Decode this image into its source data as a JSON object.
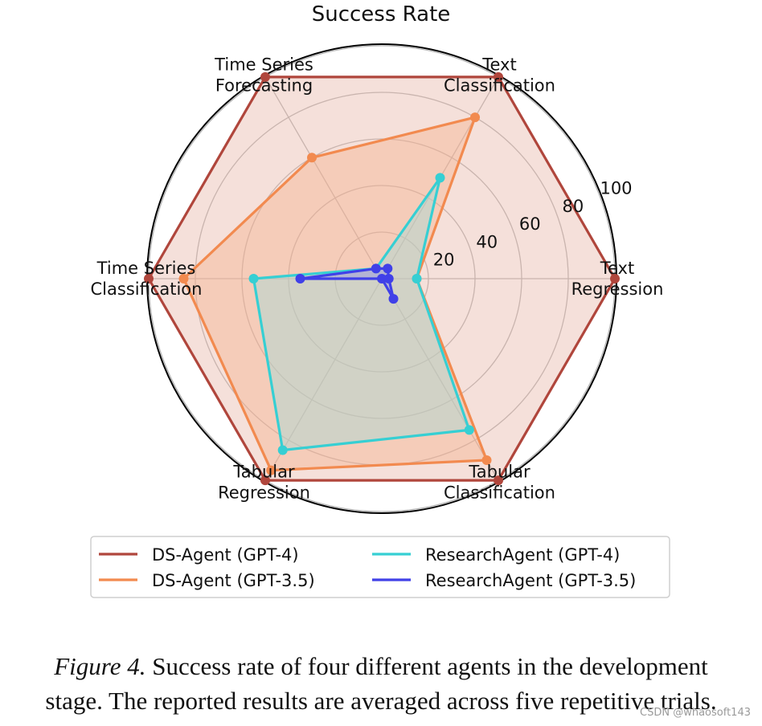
{
  "chart_data": {
    "type": "radar",
    "title": "Success Rate",
    "axes": [
      [
        "Text",
        "Regression"
      ],
      [
        "Text",
        "Classification"
      ],
      [
        "Time Series",
        "Forecasting"
      ],
      [
        "Time Series",
        "Classification"
      ],
      [
        "Tabular",
        "Regression"
      ],
      [
        "Tabular",
        "Classification"
      ]
    ],
    "radial_ticks": [
      "20",
      "40",
      "60",
      "80",
      "100"
    ],
    "rmax": 100,
    "grid": true,
    "legend_position": "bottom",
    "series": [
      {
        "name": "DS-Agent (GPT-4)",
        "color": "#b0463c",
        "fill": "#e7b4a8",
        "values": [
          100,
          100,
          100,
          100,
          100,
          100
        ]
      },
      {
        "name": "DS-Agent (GPT-3.5)",
        "color": "#f28a4f",
        "fill": "#f5b08c",
        "values": [
          15,
          80,
          60,
          85,
          95,
          90
        ]
      },
      {
        "name": "ResearchAgent (GPT-4)",
        "color": "#36cfd3",
        "fill": "#9fdcd8",
        "values": [
          15,
          50,
          5,
          55,
          85,
          75
        ]
      },
      {
        "name": "ResearchAgent (GPT-3.5)",
        "color": "#4040e8",
        "fill": "#8a88e6",
        "values": [
          3,
          5,
          5,
          35,
          0,
          10
        ]
      }
    ]
  },
  "caption": {
    "label": "Figure 4.",
    "line1": " Success rate of four different agents in the development",
    "line2": "stage. The reported results are averaged across five repetitive trials."
  },
  "watermark": "CSDN @whaosoft143"
}
